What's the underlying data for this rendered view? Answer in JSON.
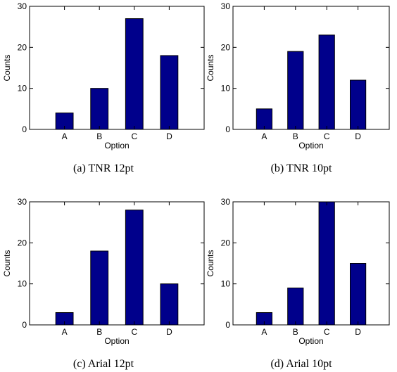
{
  "bar_color": "#00008B",
  "chart_data": [
    {
      "type": "bar",
      "caption": "(a)  TNR 12pt",
      "categories": [
        "A",
        "B",
        "C",
        "D"
      ],
      "values": [
        4,
        10,
        27,
        18
      ],
      "xlabel": "Option",
      "ylabel": "Counts",
      "ylim": [
        0,
        30
      ],
      "yticks": [
        "0",
        "10",
        "20",
        "30"
      ]
    },
    {
      "type": "bar",
      "caption": "(b)  TNR 10pt",
      "categories": [
        "A",
        "B",
        "C",
        "D"
      ],
      "values": [
        5,
        19,
        23,
        12
      ],
      "xlabel": "Option",
      "ylabel": "Counts",
      "ylim": [
        0,
        30
      ],
      "yticks": [
        "0",
        "10",
        "20",
        "30"
      ]
    },
    {
      "type": "bar",
      "caption": "(c)  Arial 12pt",
      "categories": [
        "A",
        "B",
        "C",
        "D"
      ],
      "values": [
        3,
        18,
        28,
        10
      ],
      "xlabel": "Option",
      "ylabel": "Counts",
      "ylim": [
        0,
        30
      ],
      "yticks": [
        "0",
        "10",
        "20",
        "30"
      ]
    },
    {
      "type": "bar",
      "caption": "(d)  Arial 10pt",
      "categories": [
        "A",
        "B",
        "C",
        "D"
      ],
      "values": [
        3,
        9,
        30,
        15
      ],
      "xlabel": "Option",
      "ylabel": "Counts",
      "ylim": [
        0,
        30
      ],
      "yticks": [
        "0",
        "10",
        "20",
        "30"
      ]
    }
  ]
}
